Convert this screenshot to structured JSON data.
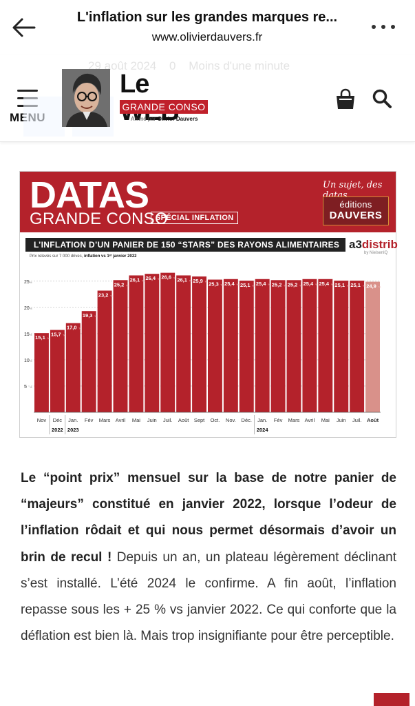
{
  "browser": {
    "title": "L'inflation sur les grandes marques re...",
    "url": "www.olivierdauvers.fr",
    "back_icon": "arrow-left-icon",
    "more_icon": "more-horizontal-icon"
  },
  "meta": {
    "date": "29 août 2024",
    "comments": "0",
    "read_time": "Moins d'une minute"
  },
  "site": {
    "menu_label": "MENU",
    "logo_big": "Le WEB",
    "logo_band": "GRANDE CONSO",
    "logo_sub_prefix": "Animé par ",
    "logo_sub_name": "Olivier Dauvers",
    "accent_color": "#c0202a",
    "cart_icon": "shopping-bag-icon",
    "search_icon": "search-icon"
  },
  "infographic": {
    "datas": "DATAS",
    "grande_conso": "GRANDE CONSO",
    "badge": "SPÉCIAL INFLATION",
    "tagline": "Un sujet, des datas",
    "editions_top": "éditions",
    "editions_bottom": "DAUVERS",
    "title": "L’INFLATION D’UN PANIER DE 150 “STARS” DES RAYONS ALIMENTAIRES",
    "brand_a3": "a3",
    "brand_distrib": "distrib",
    "brand_sub": "by NielsenIQ",
    "note_prefix": "Prix relevés sur 7 000 drives, ",
    "note_bold": "inflation vs 1ᵉʳ janvier 2022",
    "bar_color": "#b4222b",
    "highlight_color": "#d9918a"
  },
  "chart_data": {
    "type": "bar",
    "title": "L’INFLATION D’UN PANIER DE 150 “STARS” DES RAYONS ALIMENTAIRES",
    "categories": [
      "Nov",
      "Déc",
      "Jan.",
      "Fév",
      "Mars",
      "Avril",
      "Mai",
      "Juin",
      "Juil.",
      "Août",
      "Sept",
      "Oct.",
      "Nov.",
      "Déc.",
      "Jan.",
      "Fév",
      "Mars",
      "Avril",
      "Mai",
      "Juin",
      "Juil.",
      "Août"
    ],
    "values": [
      15.1,
      15.7,
      17.0,
      19.3,
      23.2,
      25.2,
      26.1,
      26.4,
      26.6,
      26.1,
      25.9,
      25.3,
      25.4,
      25.1,
      25.4,
      25.2,
      25.2,
      25.4,
      25.4,
      25.1,
      25.1,
      24.9
    ],
    "value_labels": [
      "15,1",
      "15,7",
      "17,0",
      "19,3",
      "23,2",
      "25,2",
      "26,1",
      "26,4",
      "26,6",
      "26,1",
      "25,9",
      "25,3",
      "25,4",
      "25,1",
      "25,4",
      "25,2",
      "25,2",
      "25,4",
      "25,4",
      "25,1",
      "25,1",
      "24,9"
    ],
    "unit": "%",
    "yticks": [
      "5",
      "10",
      "15",
      "20",
      "25"
    ],
    "ylim": [
      0,
      28
    ],
    "year_labels": [
      {
        "label": "2022",
        "index": 1
      },
      {
        "label": "2023",
        "index": 2
      },
      {
        "label": "2024",
        "index": 14
      }
    ],
    "highlight_index": 21,
    "grid": true
  },
  "article": {
    "lead": "Le “point prix” mensuel sur la base de notre panier de “majeurs” constitué en janvier 2022, lorsque l’odeur de l’inflation rôdait et qui nous permet désormais d’avoir un brin de recul !",
    "body": " Depuis un an, un plateau légèrement déclinant s’est installé. L’été 2024 le confirme. A fin août, l’inflation repasse sous les + 25 % vs janvier 2022. Ce qui conforte que la déflation est bien là. Mais trop insignifiante pour être perceptible."
  }
}
